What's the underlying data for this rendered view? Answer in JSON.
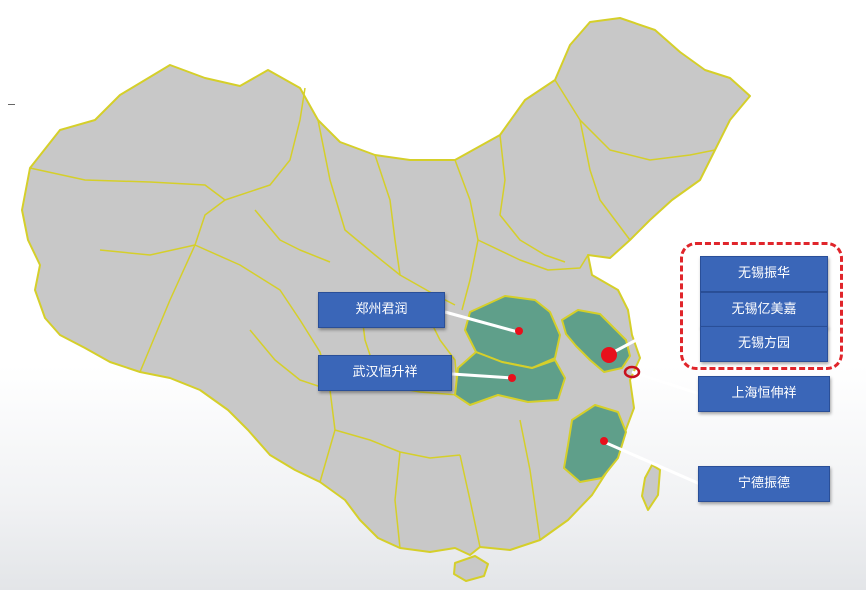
{
  "map": {
    "base_fill": "#c8c8c8",
    "border_color": "#d5cf2a",
    "highlight_fill": "#5f9f8a",
    "marker_color": "#e8101c",
    "callout_line_color": "#ffffff",
    "label_fill": "#3a66b8",
    "group_frame_color": "#e0252b",
    "highlighted_regions": [
      "Henan",
      "Hubei",
      "Jiangsu",
      "Zhejiang"
    ]
  },
  "labels": {
    "zhengzhou": "郑州君润",
    "wuhan": "武汉恒升祥",
    "wuxi_zhenhua": "无锡振华",
    "wuxi_yimeijia": "无锡亿美嘉",
    "wuxi_fangyuan": "无锡方园",
    "shanghai": "上海恒伸祥",
    "ningde": "宁德振德"
  }
}
